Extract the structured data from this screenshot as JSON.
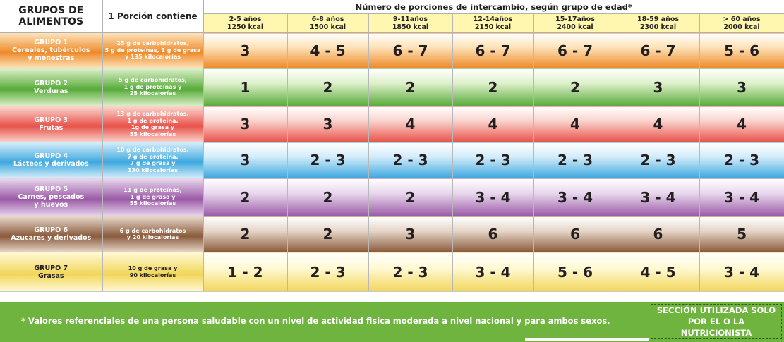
{
  "header": {
    "groups_title_line1": "GRUPOS DE",
    "groups_title_line2": "ALIMENTOS",
    "portion_title": "1 Porción contiene",
    "servings_title": "Número de porciones de intercambio, según grupo de edad*"
  },
  "age_groups": [
    {
      "range": "2-5 años",
      "kcal": "1250 kcal"
    },
    {
      "range": "6-8 años",
      "kcal": "1500 kcal"
    },
    {
      "range": "9-11años",
      "kcal": "1850 kcal"
    },
    {
      "range": "12-14años",
      "kcal": "2150 kcal"
    },
    {
      "range": "15-17años",
      "kcal": "2400 kcal"
    },
    {
      "range": "18-59 años",
      "kcal": "2300 kcal"
    },
    {
      "range": "> 60 años",
      "kcal": "2000 kcal"
    }
  ],
  "groups": [
    {
      "title": "GRUPO 1",
      "name_lines": [
        "Cereales, tubérculos",
        "y menestras"
      ],
      "portion_lines": [
        "25 g de carbohidratos,",
        "5 g de proteínas, 1 g de grasa",
        "y 135 kilocalorías"
      ],
      "servings": [
        "3",
        "4 - 5",
        "6 - 7",
        "6 - 7",
        "6 - 7",
        "6 - 7",
        "5 - 6"
      ],
      "color_dark": "#ee8a2a",
      "color_light": "#fde2b8",
      "text_light": false
    },
    {
      "title": "GRUPO 2",
      "name_lines": [
        "Verduras"
      ],
      "portion_lines": [
        "5 g de carbohidratos,",
        "1 g de proteínas y",
        "25 kilocalorías"
      ],
      "servings": [
        "1",
        "2",
        "2",
        "2",
        "2",
        "3",
        "3"
      ],
      "color_dark": "#57ab3a",
      "color_light": "#dcefc8",
      "text_light": false
    },
    {
      "title": "GRUPO 3",
      "name_lines": [
        "Frutas"
      ],
      "portion_lines": [
        "13 g de carbohidratos,",
        "1 g de proteína,",
        "1g de grasa y",
        "55 kilocalorías"
      ],
      "servings": [
        "3",
        "3",
        "4",
        "4",
        "4",
        "4",
        "4"
      ],
      "color_dark": "#e8524a",
      "color_light": "#f9d3cc",
      "text_light": false
    },
    {
      "title": "GRUPO 4",
      "name_lines": [
        "Lácteos y derivados"
      ],
      "portion_lines": [
        "10 g de carbohidratos,",
        "7 g de proteína,",
        "7 g de grasa y",
        "130 kilocalorías"
      ],
      "servings": [
        "3",
        "2 - 3",
        "2 - 3",
        "2 - 3",
        "2 - 3",
        "2 - 3",
        "2 - 3"
      ],
      "color_dark": "#3ea8df",
      "color_light": "#d3ecf9",
      "text_light": false
    },
    {
      "title": "GRUPO 5",
      "name_lines": [
        "Carnes, pescados",
        "y huevos"
      ],
      "portion_lines": [
        "11 g de proteínas,",
        "1 g de grasa y",
        "55 kilocalorías"
      ],
      "servings": [
        "2",
        "2",
        "2",
        "3 - 4",
        "3 - 4",
        "3 - 4",
        "3 - 4"
      ],
      "color_dark": "#9b5aa6",
      "color_light": "#e7d6ec",
      "text_light": false
    },
    {
      "title": "GRUPO 6",
      "name_lines": [
        "Azucares y derivados"
      ],
      "portion_lines": [
        "6 g de carbohidratos",
        "y 20 kilocalorías"
      ],
      "servings": [
        "2",
        "2",
        "3",
        "6",
        "6",
        "6",
        "5"
      ],
      "color_dark": "#8a5a3b",
      "color_light": "#e6d6c8",
      "text_light": false
    },
    {
      "title": "GRUPO 7",
      "name_lines": [
        "Grasas"
      ],
      "portion_lines": [
        "10 g de grasa y",
        "90 kilocalorías"
      ],
      "servings": [
        "1 - 2",
        "2 - 3",
        "2 - 3",
        "3 - 4",
        "5 - 6",
        "4 - 5",
        "3 - 4"
      ],
      "color_dark": "#f1d65a",
      "color_light": "#fff9d4",
      "text_light": true
    }
  ],
  "footer": {
    "note": "* Valores referenciales de una persona saludable con un nivel de actividad fisica moderada a nivel nacional y para ambos sexos.",
    "nutritionist_line1": "SECCIÓN UTILIZADA SOLO",
    "nutritionist_line2": "POR EL O LA NUTRICIONISTA"
  }
}
